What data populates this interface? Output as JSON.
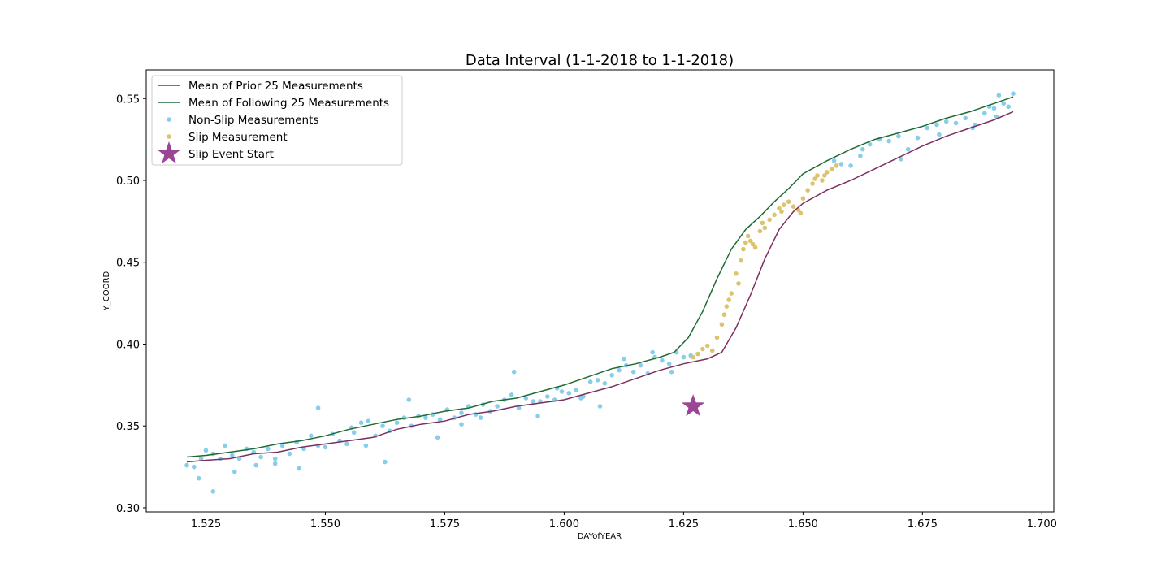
{
  "chart_data": {
    "type": "scatter",
    "title": "Data Interval (1-1-2018 to 1-1-2018)",
    "xlabel": "DAYofYEAR",
    "ylabel": "Y_COORD",
    "xlim": [
      1.5125,
      1.7025
    ],
    "ylim": [
      0.2975,
      0.5675
    ],
    "xticks": [
      1.525,
      1.55,
      1.575,
      1.6,
      1.625,
      1.65,
      1.675,
      1.7
    ],
    "xtick_labels": [
      "1.525",
      "1.550",
      "1.575",
      "1.600",
      "1.625",
      "1.650",
      "1.675",
      "1.700"
    ],
    "yticks": [
      0.3,
      0.35,
      0.4,
      0.45,
      0.5,
      0.55
    ],
    "ytick_labels": [
      "0.30",
      "0.35",
      "0.40",
      "0.45",
      "0.50",
      "0.55"
    ],
    "grid": false,
    "legend_position": "top-left",
    "colors": {
      "prior_mean": "#7b2f5e",
      "following_mean": "#1f6b34",
      "non_slip": "#87ceeb",
      "slip": "#dcc46e",
      "star": "#9b4596"
    },
    "series": [
      {
        "name": "Mean of Prior 25 Measurements",
        "kind": "line",
        "x": [
          1.521,
          1.525,
          1.53,
          1.535,
          1.54,
          1.545,
          1.55,
          1.555,
          1.56,
          1.565,
          1.57,
          1.575,
          1.58,
          1.585,
          1.59,
          1.595,
          1.6,
          1.605,
          1.61,
          1.615,
          1.62,
          1.625,
          1.63,
          1.633,
          1.636,
          1.639,
          1.642,
          1.645,
          1.648,
          1.65,
          1.655,
          1.66,
          1.665,
          1.67,
          1.675,
          1.68,
          1.685,
          1.69,
          1.694
        ],
        "y": [
          0.328,
          0.329,
          0.33,
          0.333,
          0.334,
          0.337,
          0.339,
          0.341,
          0.343,
          0.348,
          0.351,
          0.353,
          0.357,
          0.359,
          0.362,
          0.364,
          0.366,
          0.37,
          0.374,
          0.379,
          0.384,
          0.388,
          0.391,
          0.395,
          0.41,
          0.43,
          0.452,
          0.47,
          0.481,
          0.486,
          0.494,
          0.5,
          0.507,
          0.514,
          0.521,
          0.527,
          0.532,
          0.537,
          0.542
        ]
      },
      {
        "name": "Mean of Following 25 Measurements",
        "kind": "line",
        "x": [
          1.521,
          1.525,
          1.53,
          1.535,
          1.54,
          1.545,
          1.55,
          1.555,
          1.56,
          1.565,
          1.57,
          1.575,
          1.58,
          1.585,
          1.59,
          1.595,
          1.6,
          1.605,
          1.61,
          1.615,
          1.62,
          1.623,
          1.626,
          1.629,
          1.632,
          1.635,
          1.638,
          1.641,
          1.644,
          1.647,
          1.65,
          1.655,
          1.66,
          1.665,
          1.67,
          1.675,
          1.68,
          1.685,
          1.69,
          1.694
        ],
        "y": [
          0.331,
          0.332,
          0.334,
          0.336,
          0.339,
          0.341,
          0.344,
          0.348,
          0.351,
          0.354,
          0.356,
          0.359,
          0.361,
          0.365,
          0.367,
          0.371,
          0.375,
          0.38,
          0.385,
          0.388,
          0.392,
          0.395,
          0.404,
          0.42,
          0.44,
          0.458,
          0.47,
          0.478,
          0.487,
          0.495,
          0.504,
          0.512,
          0.519,
          0.525,
          0.529,
          0.533,
          0.538,
          0.542,
          0.547,
          0.551
        ]
      },
      {
        "name": "Non-Slip Measurements",
        "kind": "scatter",
        "x": [
          1.521,
          1.5225,
          1.524,
          1.525,
          1.5265,
          1.528,
          1.529,
          1.5305,
          1.532,
          1.5335,
          1.535,
          1.5365,
          1.538,
          1.5395,
          1.541,
          1.5425,
          1.544,
          1.5455,
          1.547,
          1.5485,
          1.55,
          1.5515,
          1.553,
          1.5545,
          1.556,
          1.5575,
          1.559,
          1.5605,
          1.562,
          1.5635,
          1.565,
          1.5665,
          1.568,
          1.5695,
          1.571,
          1.5725,
          1.574,
          1.5755,
          1.577,
          1.5785,
          1.58,
          1.5815,
          1.583,
          1.5845,
          1.586,
          1.5875,
          1.589,
          1.5905,
          1.592,
          1.5935,
          1.595,
          1.5965,
          1.598,
          1.5995,
          1.601,
          1.6025,
          1.604,
          1.6055,
          1.607,
          1.6085,
          1.61,
          1.6115,
          1.613,
          1.6145,
          1.616,
          1.6175,
          1.619,
          1.6205,
          1.622,
          1.6235,
          1.625,
          1.6265,
          1.656,
          1.658,
          1.66,
          1.662,
          1.664,
          1.666,
          1.668,
          1.67,
          1.672,
          1.674,
          1.676,
          1.678,
          1.68,
          1.682,
          1.684,
          1.686,
          1.688,
          1.689,
          1.69,
          1.691,
          1.692,
          1.693,
          1.694,
          1.5235,
          1.5265,
          1.531,
          1.5355,
          1.5395,
          1.5445,
          1.5485,
          1.5555,
          1.5585,
          1.5625,
          1.5675,
          1.5735,
          1.5785,
          1.5825,
          1.5895,
          1.5945,
          1.5985,
          1.6035,
          1.6075,
          1.6125,
          1.6185,
          1.6225,
          1.6565,
          1.6625,
          1.6705,
          1.6785,
          1.6855,
          1.6905
        ],
        "y": [
          0.326,
          0.325,
          0.33,
          0.335,
          0.333,
          0.33,
          0.338,
          0.332,
          0.33,
          0.336,
          0.334,
          0.331,
          0.336,
          0.33,
          0.338,
          0.333,
          0.34,
          0.336,
          0.344,
          0.338,
          0.337,
          0.345,
          0.341,
          0.339,
          0.346,
          0.352,
          0.353,
          0.344,
          0.35,
          0.347,
          0.352,
          0.355,
          0.35,
          0.356,
          0.355,
          0.357,
          0.354,
          0.36,
          0.355,
          0.358,
          0.362,
          0.357,
          0.363,
          0.359,
          0.362,
          0.366,
          0.369,
          0.361,
          0.367,
          0.365,
          0.365,
          0.368,
          0.366,
          0.371,
          0.37,
          0.372,
          0.368,
          0.377,
          0.378,
          0.376,
          0.381,
          0.384,
          0.387,
          0.383,
          0.387,
          0.382,
          0.392,
          0.39,
          0.388,
          0.395,
          0.392,
          0.393,
          0.507,
          0.51,
          0.509,
          0.515,
          0.522,
          0.525,
          0.524,
          0.527,
          0.519,
          0.526,
          0.532,
          0.534,
          0.536,
          0.535,
          0.538,
          0.534,
          0.541,
          0.545,
          0.544,
          0.552,
          0.547,
          0.545,
          0.553,
          0.318,
          0.31,
          0.322,
          0.326,
          0.327,
          0.324,
          0.361,
          0.349,
          0.338,
          0.328,
          0.366,
          0.343,
          0.351,
          0.355,
          0.383,
          0.356,
          0.373,
          0.367,
          0.362,
          0.391,
          0.395,
          0.383,
          0.512,
          0.519,
          0.513,
          0.528,
          0.532,
          0.539
        ]
      },
      {
        "name": "Slip Measurement",
        "kind": "scatter",
        "x": [
          1.627,
          1.628,
          1.629,
          1.63,
          1.631,
          1.632,
          1.633,
          1.634,
          1.635,
          1.636,
          1.637,
          1.6375,
          1.638,
          1.6385,
          1.639,
          1.64,
          1.641,
          1.642,
          1.643,
          1.644,
          1.645,
          1.646,
          1.647,
          1.648,
          1.649,
          1.65,
          1.651,
          1.652,
          1.653,
          1.654,
          1.655,
          1.656,
          1.657,
          1.6335,
          1.6345,
          1.6365,
          1.6395,
          1.6415,
          1.6455,
          1.6495,
          1.6525,
          1.6545
        ],
        "y": [
          0.392,
          0.394,
          0.397,
          0.399,
          0.396,
          0.404,
          0.412,
          0.423,
          0.431,
          0.443,
          0.451,
          0.458,
          0.462,
          0.466,
          0.463,
          0.459,
          0.469,
          0.471,
          0.476,
          0.479,
          0.483,
          0.485,
          0.487,
          0.484,
          0.482,
          0.489,
          0.494,
          0.498,
          0.503,
          0.5,
          0.505,
          0.507,
          0.509,
          0.418,
          0.427,
          0.437,
          0.461,
          0.474,
          0.481,
          0.48,
          0.501,
          0.503
        ]
      },
      {
        "name": "Slip Event Start",
        "kind": "marker",
        "x": [
          1.627
        ],
        "y": [
          0.362
        ]
      }
    ]
  }
}
